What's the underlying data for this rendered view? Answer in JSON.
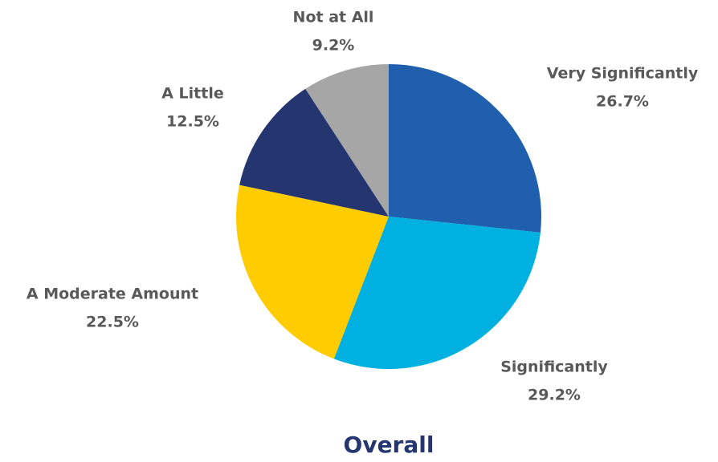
{
  "chart_data": {
    "type": "pie",
    "title": "Overall",
    "categories": [
      "Very Significantly",
      "Significantly",
      "A Moderate Amount",
      "A Little",
      "Not at All"
    ],
    "values": [
      26.7,
      29.2,
      22.5,
      12.5,
      9.2
    ],
    "value_labels": [
      "26.7%",
      "29.2%",
      "22.5%",
      "12.5%",
      "9.2%"
    ],
    "colors": [
      "#1f5fad",
      "#00b0e0",
      "#ffcc00",
      "#253570",
      "#a6a6a6"
    ]
  }
}
